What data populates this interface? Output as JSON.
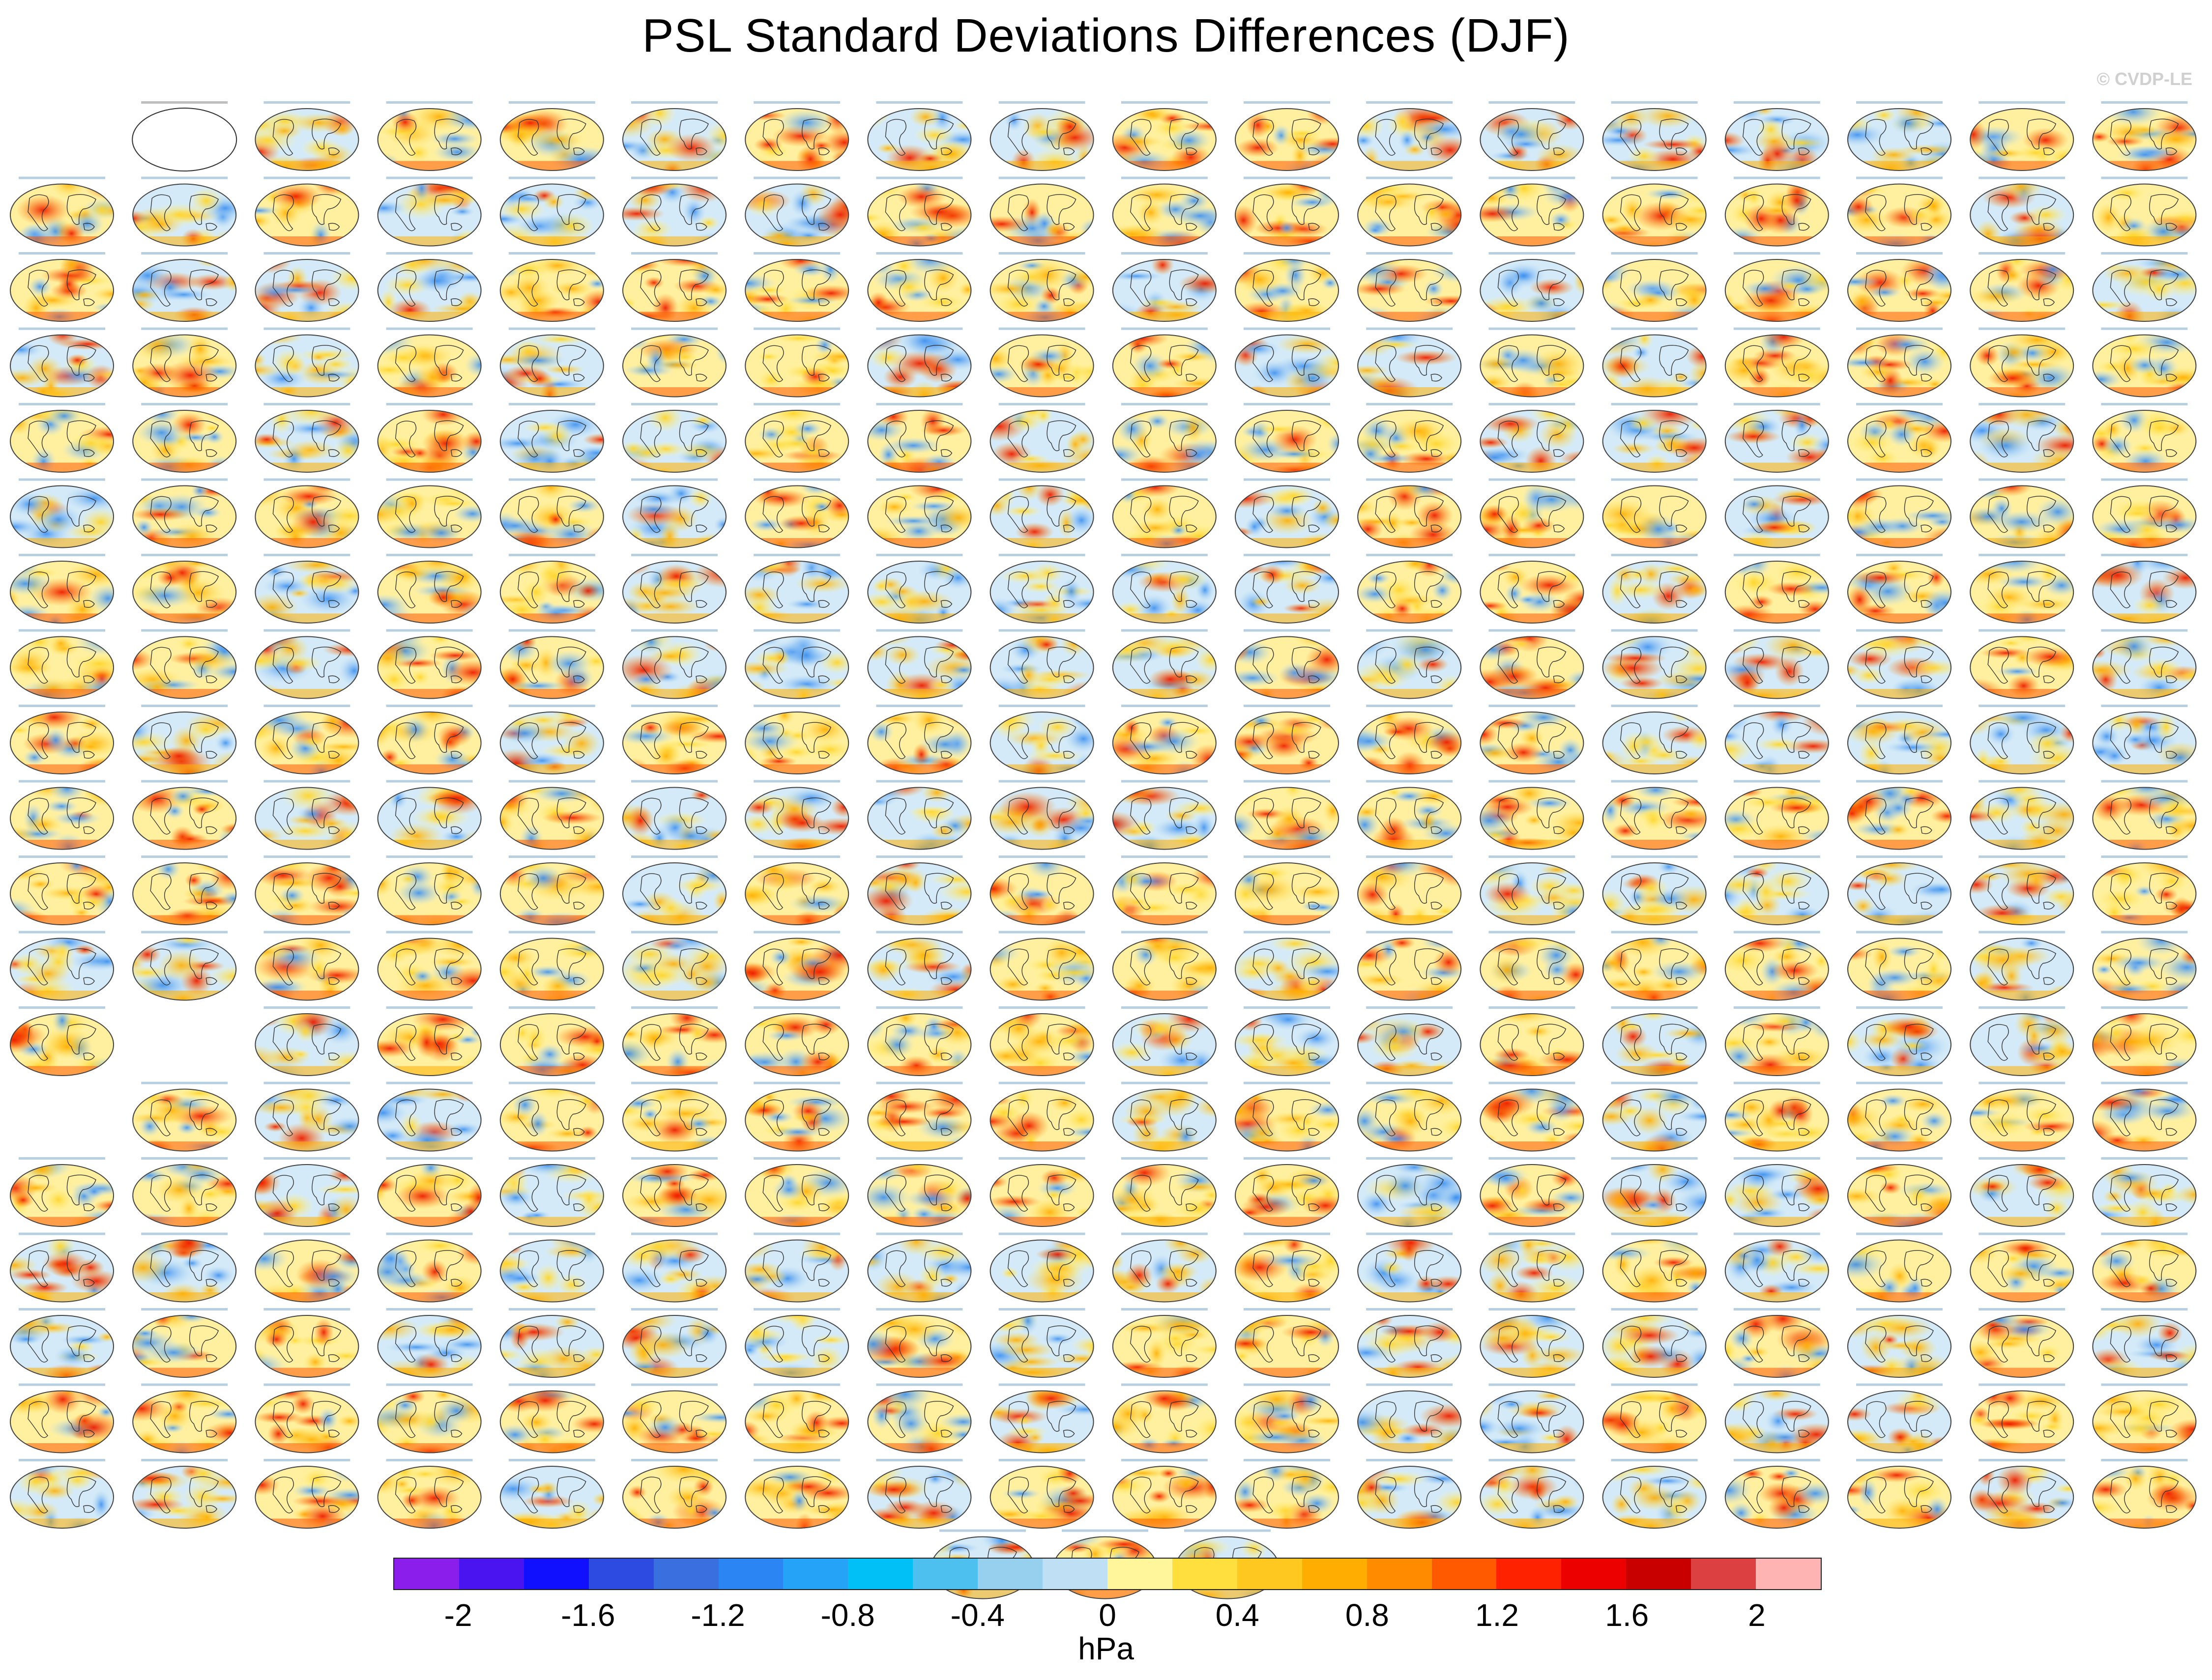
{
  "title": "PSL Standard Deviations Differences (DJF)",
  "credit": "© CVDP-LE",
  "chart_data": {
    "type": "heatmap",
    "title": "PSL Standard Deviations Differences (DJF)",
    "description_kind": "grid of global map panels, each showing model-minus-ERA5 differences of DJF PSL standard deviation",
    "panel_grid": {
      "rows": 19,
      "columns": 18,
      "extra_bottom_row_panels": 3
    },
    "colorbar": {
      "units": "hPa",
      "min": -2.2,
      "max": 2.2,
      "step": 0.2,
      "tick_labels": [
        "-2",
        "-1.6",
        "-1.2",
        "-0.8",
        "-0.4",
        "0",
        "0.4",
        "0.8",
        "1.2",
        "1.6",
        "2"
      ],
      "colors": [
        "#8c1eec",
        "#4a14f0",
        "#1010ff",
        "#2d4be0",
        "#3a6fe0",
        "#2b86f4",
        "#25a3f6",
        "#00c0f6",
        "#4ec0f0",
        "#96d0ee",
        "#bfe0f4",
        "#fff59a",
        "#ffdf3d",
        "#ffc820",
        "#ffae00",
        "#ff8c00",
        "#ff5a00",
        "#ff2200",
        "#ec0000",
        "#c80000",
        "#dc4040",
        "#ffb4b4"
      ]
    }
  },
  "colors": {
    "map_blue_light": "#cde6f6",
    "map_blue": "#6ab0ee",
    "map_yellow": "#ffe45a",
    "map_orange": "#ffaa00",
    "map_red": "#ee1c00",
    "coast": "#333333"
  }
}
